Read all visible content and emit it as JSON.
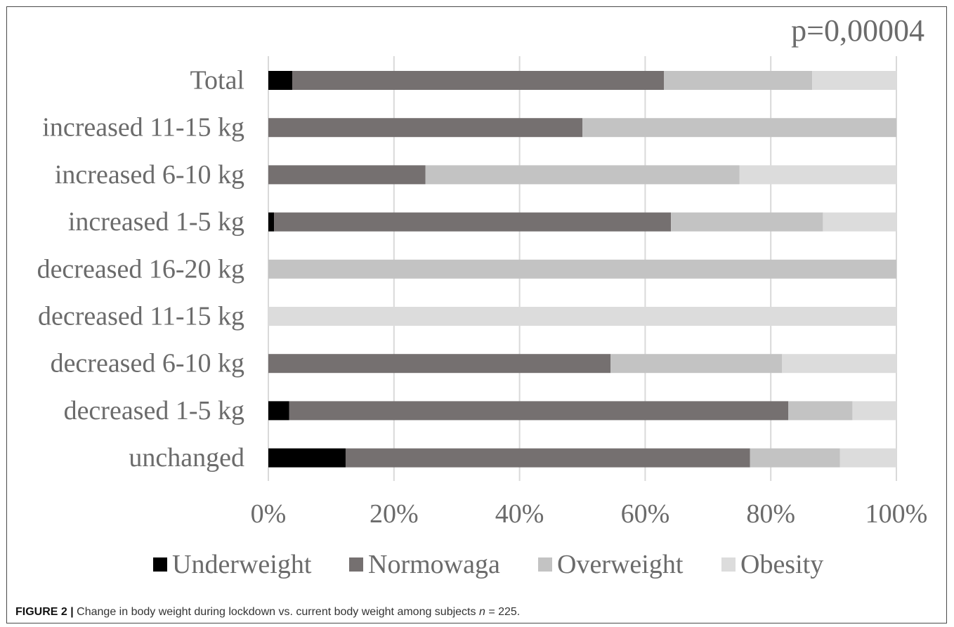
{
  "figure": {
    "caption_label": "FIGURE 2 |",
    "caption_text_before": "Change in body weight during lockdown vs. current body weight among subjects",
    "caption_n_symbol": "n",
    "caption_text_after": "= 225."
  },
  "chart_data": {
    "type": "bar",
    "orientation": "horizontal",
    "stacked": "percent",
    "annotation": "p=0,00004",
    "categories": [
      "Total",
      "increased 11-15 kg",
      "increased 6-10 kg",
      "increased 1-5 kg",
      "decreased 16-20 kg",
      "decreased 11-15 kg",
      "decreased 6-10 kg",
      "decreased 1-5 kg",
      "unchanged"
    ],
    "series": [
      {
        "name": "Underweight",
        "color": "#000000",
        "values": [
          3.8,
          0,
          0,
          0.9,
          0,
          0,
          0,
          3.3,
          12.3
        ]
      },
      {
        "name": "Normowaga",
        "color": "#757070",
        "values": [
          59.2,
          50,
          25,
          63.2,
          0,
          0,
          54.5,
          79.5,
          64.4
        ]
      },
      {
        "name": "Overweight",
        "color": "#c3c3c3",
        "values": [
          23.6,
          50,
          50,
          24.2,
          100,
          0,
          27.3,
          10.2,
          14.3
        ]
      },
      {
        "name": "Obesity",
        "color": "#dcdcdc",
        "values": [
          13.4,
          0,
          25,
          11.7,
          0,
          100,
          18.2,
          7.0,
          9.0
        ]
      }
    ],
    "xlim": [
      0,
      100
    ],
    "xticks": [
      "0%",
      "20%",
      "40%",
      "60%",
      "80%",
      "100%"
    ],
    "grid": true,
    "legend_position": "bottom"
  }
}
